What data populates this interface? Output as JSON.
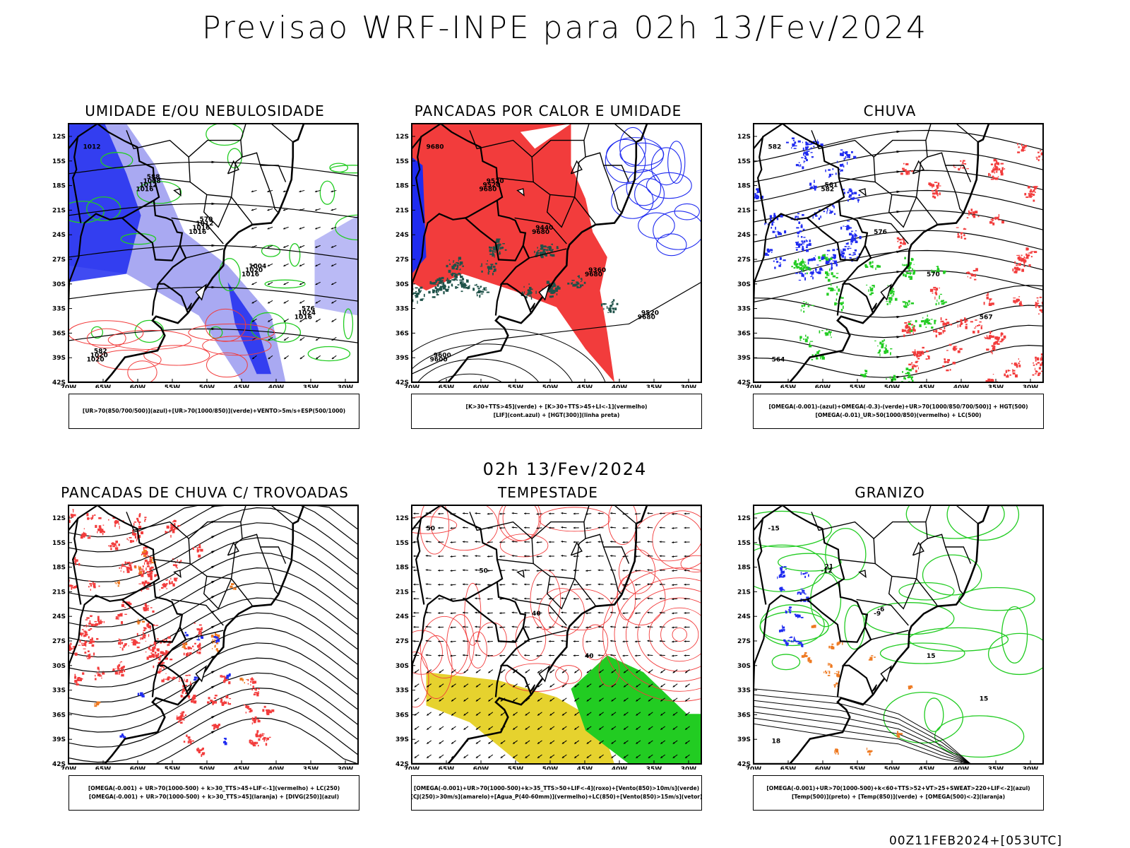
{
  "title": "Previsao WRF-INPE  para 02h 13/Fev/2024",
  "mid_title": "02h 13/Fev/2024",
  "footer": "00Z11FEB2024+[053UTC]",
  "axes": {
    "lat_labels": [
      "12S",
      "15S",
      "18S",
      "21S",
      "24S",
      "27S",
      "30S",
      "33S",
      "36S",
      "39S",
      "42S"
    ],
    "lon_labels": [
      "70W",
      "65W",
      "60W",
      "55W",
      "50W",
      "45W",
      "40W",
      "35W",
      "30W"
    ]
  },
  "colors": {
    "blue": "#1f2bf0",
    "light_blue": "#a9a9f2",
    "green": "#22cc22",
    "red": "#f23c3c",
    "dark_teal": "#1f5249",
    "yellow": "#e6d22e",
    "orange": "#ee7a22",
    "purple": "#a020f0"
  },
  "panels": [
    {
      "id": "umidade",
      "title": "UMIDADE E/OU NEBULOSIDADE",
      "legend": [
        "[UR>70(850/700/500)](azul)+[UR>70(1000/850)](verde)+VENTO>5m/s+ESP(500/1000)"
      ],
      "contour_labels": [
        "1012",
        "1016",
        "1016",
        "1016",
        "1016",
        "1020",
        "1012",
        "1016",
        "1020",
        "1024",
        "1020",
        "1008",
        "1012",
        "1004",
        "576",
        "582",
        "588",
        "570"
      ]
    },
    {
      "id": "pancadas-calor",
      "title": "PANCADAS POR CALOR E UMIDADE",
      "legend": [
        "[K>30+TTS>45](verde) + [K>30+TTS>45+LI<-1](vermelho)",
        "[LIF](cont.azul) + [HGT(300)](linha preta)"
      ],
      "contour_labels": [
        "9680",
        "9680",
        "9680",
        "9680",
        "9680",
        "9600",
        "9520",
        "9440",
        "9360",
        "9520",
        "9600",
        "9520"
      ]
    },
    {
      "id": "chuva",
      "title": "CHUVA",
      "legend": [
        "[OMEGA(-0.001)-(azul)+OMEGA(-0.3)-(verde)+UR>70(1000/850/700/500)] + HGT(500)",
        "[OMEGA(-0.01)_UR>50(1000/850)(vermelho) + LC(500)"
      ],
      "contour_labels": [
        "582",
        "582",
        "576",
        "570",
        "567",
        "564",
        "561"
      ]
    },
    {
      "id": "pancadas-trovoadas",
      "title": "PANCADAS DE CHUVA C/ TROVOADAS",
      "legend": [
        "[OMEGA(-0.001) + UR>70(1000-500) + k>30_TTS>45+LIF<-1](vermelho) + LC(250)",
        "[OMEGA(-0.001) + UR>70(1000-500) + k>30_TTS>45](laranja) + [DIVG(250)](azul)"
      ],
      "contour_labels": []
    },
    {
      "id": "tempestade",
      "title": "TEMPESTADE",
      "legend": [
        "[OMEGA(-0.001)+UR>70(1000-500)+k>35_TTS>50+LIF<-4](roxo)+[Vento(850)>10m/s](verde)",
        "[CJ(250)>30m/s](amarelo)+[Agua_P(40-60mm)](vermelho)+LC(850)+[Vento(850)>15m/s](vetor)"
      ],
      "contour_labels": [
        "50",
        "50",
        "40",
        "40"
      ]
    },
    {
      "id": "granizo",
      "title": "GRANIZO",
      "legend": [
        "[OMEGA(-0.001)+UR>70(1000-500)+k<60+TTS>52+VT>25+SWEAT>220+LIF<-2](azul)",
        "[Temp(500)](preto) + [Temp(850)](verde) + [OMEGA(500)<-2](laranja)"
      ],
      "contour_labels": [
        "-15",
        "-12",
        "-9",
        "15",
        "15",
        "18",
        "21",
        "-6"
      ]
    }
  ]
}
